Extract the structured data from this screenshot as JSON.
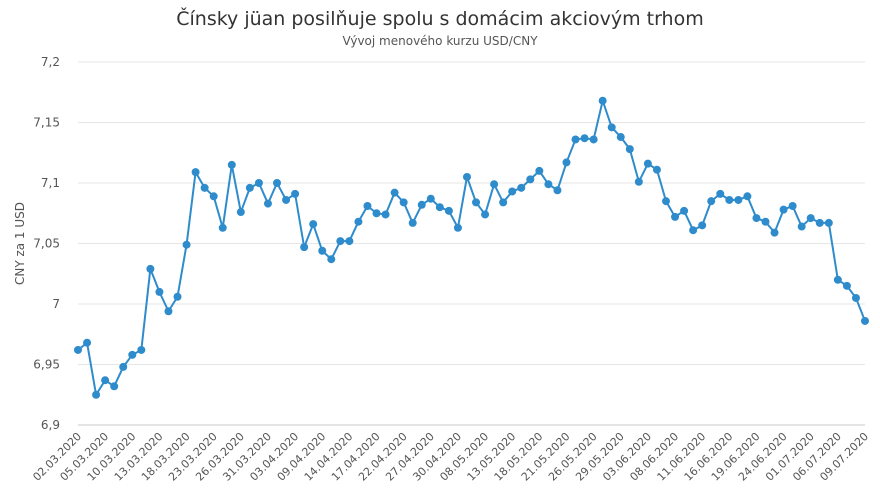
{
  "chart_data": {
    "type": "line",
    "title": "Čínsky jüan posilňuje spolu s domácim akciovým trhom",
    "subtitle": "Vývoj menového kurzu USD/CNY",
    "xlabel": "",
    "ylabel": "CNY za 1 USD",
    "ylim": [
      6.9,
      7.2
    ],
    "y_ticks": [
      "6,9",
      "6,95",
      "7",
      "7,05",
      "7,1",
      "7,15",
      "7,2"
    ],
    "y_tick_values": [
      6.9,
      6.95,
      7.0,
      7.05,
      7.1,
      7.15,
      7.2
    ],
    "x_tick_labels": [
      "02.03.2020",
      "05.03.2020",
      "10.03.2020",
      "13.03.2020",
      "18.03.2020",
      "23.03.2020",
      "26.03.2020",
      "31.03.2020",
      "03.04.2020",
      "09.04.2020",
      "14.04.2020",
      "17.04.2020",
      "22.04.2020",
      "27.04.2020",
      "30.04.2020",
      "08.05.2020",
      "13.05.2020",
      "18.05.2020",
      "21.05.2020",
      "26.05.2020",
      "29.05.2020",
      "03.06.2020",
      "08.06.2020",
      "11.06.2020",
      "16.06.2020",
      "19.06.2020",
      "24.06.2020",
      "01.07.2020",
      "06.07.2020",
      "09.07.2020"
    ],
    "grid": true,
    "legend": "none",
    "colors": {
      "line": "#2f8ccc",
      "grid": "#e6e6e6"
    },
    "series": [
      {
        "values": [
          6.962,
          6.968,
          6.925,
          6.937,
          6.932,
          6.948,
          6.958,
          6.962,
          7.029,
          7.01,
          6.994,
          7.006,
          7.049,
          7.109,
          7.096,
          7.089,
          7.063,
          7.115,
          7.076,
          7.096,
          7.1,
          7.083,
          7.1,
          7.086,
          7.091,
          7.047,
          7.066,
          7.044,
          7.037,
          7.052,
          7.052,
          7.068,
          7.081,
          7.075,
          7.074,
          7.092,
          7.084,
          7.067,
          7.082,
          7.087,
          7.08,
          7.077,
          7.063,
          7.105,
          7.084,
          7.074,
          7.099,
          7.084,
          7.093,
          7.096,
          7.103,
          7.11,
          7.099,
          7.094,
          7.117,
          7.136,
          7.137,
          7.136,
          7.168,
          7.146,
          7.138,
          7.128,
          7.101,
          7.116,
          7.111,
          7.085,
          7.072,
          7.077,
          7.061,
          7.065,
          7.085,
          7.091,
          7.086,
          7.086,
          7.089,
          7.071,
          7.068,
          7.059,
          7.078,
          7.081,
          7.064,
          7.071,
          7.067,
          7.067,
          7.02,
          7.015,
          7.005,
          6.986
        ]
      }
    ]
  }
}
